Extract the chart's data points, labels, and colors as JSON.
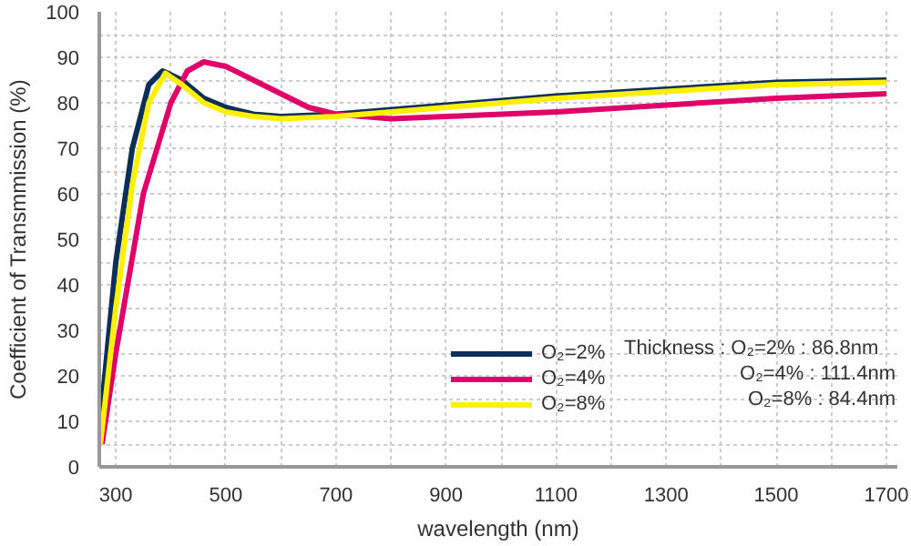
{
  "chart_data": {
    "type": "line",
    "xlabel": "wavelength (nm)",
    "ylabel": "Coefficient of Transmmission (%)",
    "xlim": [
      270,
      1720
    ],
    "ylim": [
      0,
      100
    ],
    "xticks": [
      300,
      {
        "value": 400,
        "label": null
      },
      500,
      {
        "value": 600,
        "label": null
      },
      700,
      {
        "value": 800,
        "label": null
      },
      900,
      {
        "value": 1000,
        "label": null
      },
      1100,
      {
        "value": 1200,
        "label": null
      },
      1300,
      {
        "value": 1400,
        "label": null
      },
      1500,
      {
        "value": 1600,
        "label": null
      },
      1700
    ],
    "yticks": [
      0,
      {
        "value": 5,
        "label": null
      },
      10,
      {
        "value": 15,
        "label": null
      },
      20,
      {
        "value": 25,
        "label": null
      },
      30,
      {
        "value": 35,
        "label": null
      },
      40,
      {
        "value": 45,
        "label": null
      },
      50,
      {
        "value": 55,
        "label": null
      },
      60,
      {
        "value": 65,
        "label": null
      },
      70,
      {
        "value": 75,
        "label": null
      },
      80,
      {
        "value": 85,
        "label": null
      },
      90,
      {
        "value": 95,
        "label": null
      },
      100
    ],
    "grid": true,
    "legend": "bottom right",
    "line_style": "solid",
    "series": [
      {
        "name": "O₂=2%",
        "color": "#0a2f5a",
        "x": [
          272,
          300,
          330,
          360,
          385,
          420,
          460,
          500,
          550,
          600,
          700,
          900,
          1100,
          1300,
          1500,
          1700
        ],
        "values": [
          10,
          45,
          70,
          84,
          87,
          85,
          81,
          79,
          77.5,
          77,
          77.5,
          79.5,
          81.5,
          83,
          84.5,
          85
        ]
      },
      {
        "name": "O₂=4%",
        "color": "#e0006a",
        "x": [
          275,
          300,
          350,
          400,
          430,
          460,
          500,
          550,
          600,
          650,
          700,
          800,
          900,
          1100,
          1300,
          1500,
          1700
        ],
        "values": [
          5,
          25,
          60,
          80,
          87,
          89,
          88,
          85,
          82,
          79,
          77.5,
          76.5,
          77,
          78,
          79.5,
          81,
          82
        ]
      },
      {
        "name": "O₂=8%",
        "color": "#fff000",
        "x": [
          272,
          300,
          330,
          360,
          390,
          420,
          460,
          500,
          550,
          600,
          700,
          900,
          1100,
          1300,
          1500,
          1700
        ],
        "values": [
          5,
          35,
          62,
          80,
          86.5,
          84,
          80,
          78,
          77,
          76.5,
          77,
          79,
          81,
          82.5,
          84,
          84.5
        ]
      }
    ],
    "annotations": [
      "Thickness : O₂=2% : 86.8nm",
      "O₂=4% : 111.4nm",
      "O₂=8% : 84.4nm"
    ]
  }
}
